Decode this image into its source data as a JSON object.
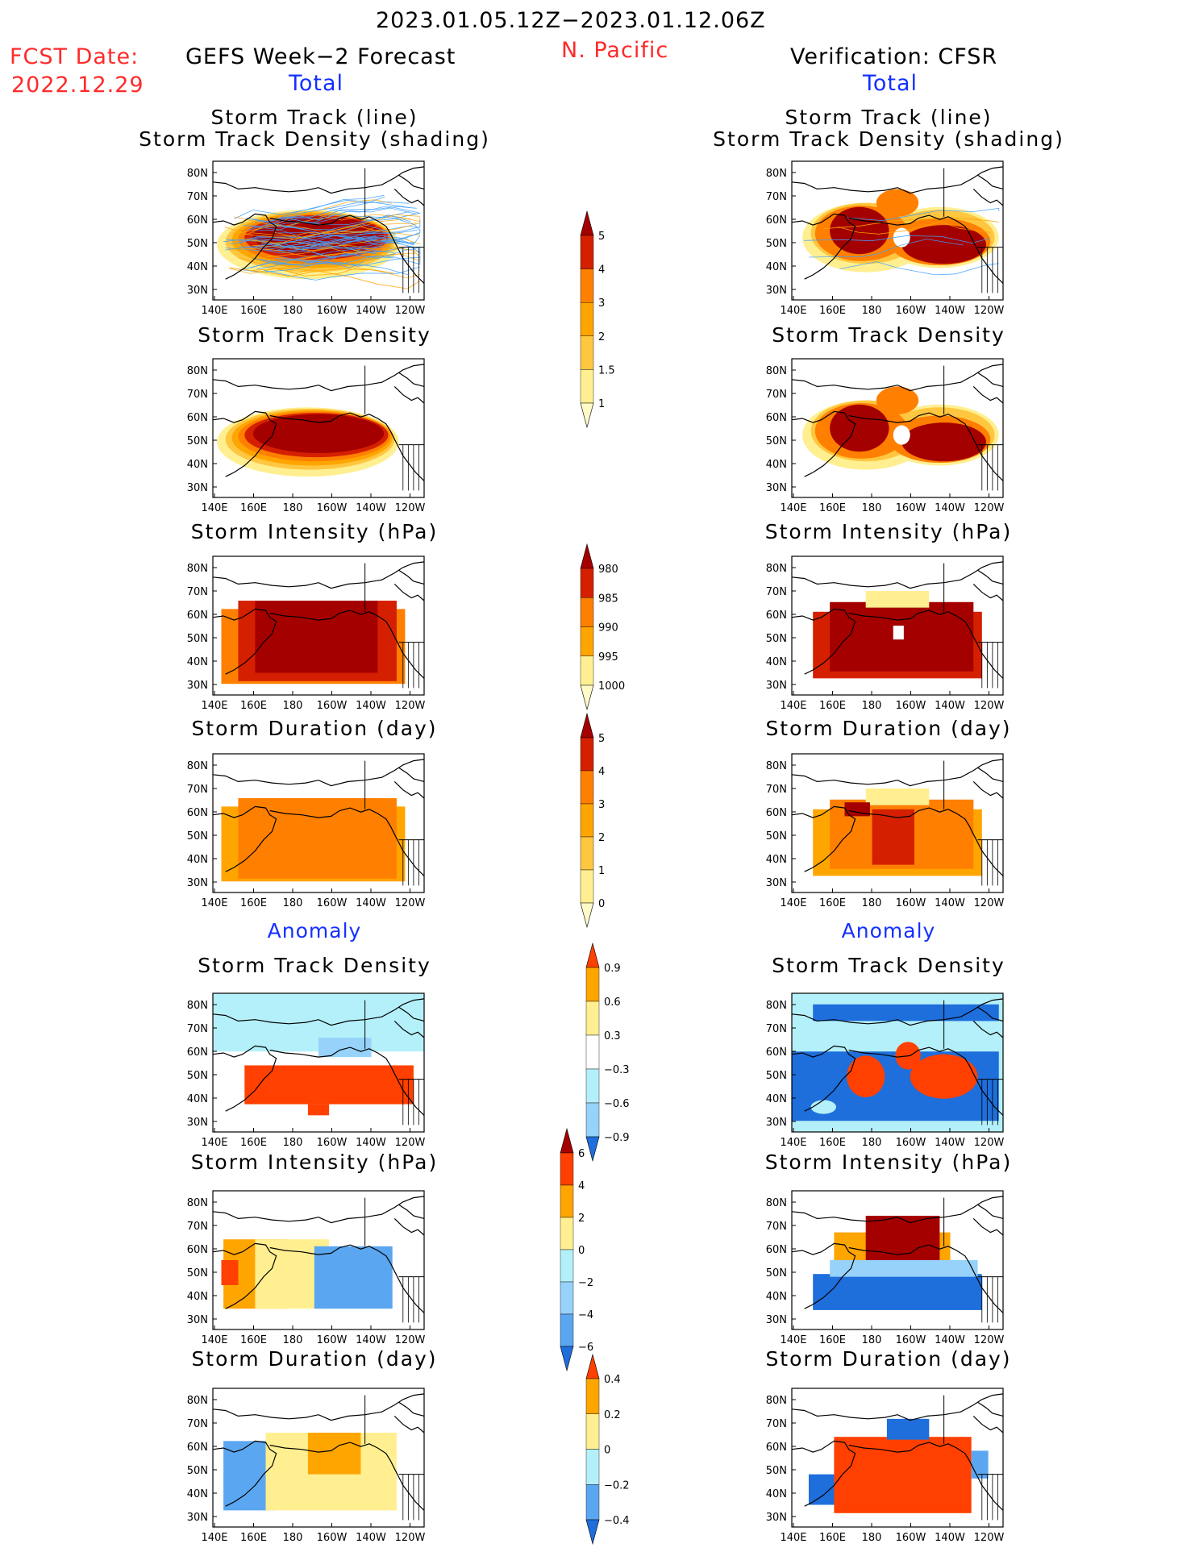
{
  "header": {
    "date_range": "2023.01.05.12Z−2023.01.12.06Z",
    "fcst_label": "FCST Date:",
    "fcst_date": "2022.12.29",
    "region": "N. Pacific",
    "left_title": "GEFS Week−2 Forecast",
    "right_title": "Verification: CFSR",
    "total_label": "Total",
    "anomaly_label": "Anomaly"
  },
  "colors": {
    "darkred": "#a50000",
    "red": "#d42000",
    "orangered": "#ff4000",
    "orange": "#ff7f00",
    "lightorange": "#ffa500",
    "amber": "#ffc640",
    "pale": "#ffef90",
    "paler": "#fffac8",
    "lightblue": "#b4f0fa",
    "midblue": "#96d2fa",
    "blue": "#5ba6f0",
    "deepblue": "#1e6edc",
    "track_blue": "#3fa0ff"
  },
  "map": {
    "lat_ticks": [
      "80N",
      "70N",
      "60N",
      "50N",
      "40N",
      "30N"
    ],
    "lon_ticks": [
      "140E",
      "160E",
      "180",
      "160W",
      "140W",
      "120W"
    ]
  },
  "panels": [
    {
      "id": "fc-track",
      "title_lines": [
        "Storm Track (line)",
        "Storm Track Density (shading)"
      ]
    },
    {
      "id": "fc-density",
      "title_lines": [
        "Storm Track Density"
      ]
    },
    {
      "id": "fc-intensity",
      "title_lines": [
        "Storm Intensity (hPa)"
      ]
    },
    {
      "id": "fc-duration",
      "title_lines": [
        "Storm Duration (day)"
      ]
    },
    {
      "id": "fc-anom-density",
      "title_lines": [
        "Storm Track Density"
      ]
    },
    {
      "id": "fc-anom-intensity",
      "title_lines": [
        "Storm Intensity (hPa)"
      ]
    },
    {
      "id": "fc-anom-duration",
      "title_lines": [
        "Storm Duration (day)"
      ]
    },
    {
      "id": "vf-track",
      "title_lines": [
        "Storm Track (line)",
        "Storm Track Density (shading)"
      ]
    },
    {
      "id": "vf-density",
      "title_lines": [
        "Storm Track Density"
      ]
    },
    {
      "id": "vf-intensity",
      "title_lines": [
        "Storm Intensity (hPa)"
      ]
    },
    {
      "id": "vf-duration",
      "title_lines": [
        "Storm Duration (day)"
      ]
    },
    {
      "id": "vf-anom-density",
      "title_lines": [
        "Storm Track Density"
      ]
    },
    {
      "id": "vf-anom-intensity",
      "title_lines": [
        "Storm Intensity (hPa)"
      ]
    },
    {
      "id": "vf-anom-duration",
      "title_lines": [
        "Storm Duration (day)"
      ]
    }
  ],
  "chart_data": [
    {
      "type": "heatmap",
      "name": "colorbar-total-density",
      "levels": [
        "1",
        "1.5",
        "2",
        "3",
        "4",
        "5"
      ],
      "colors": [
        "#fffac8",
        "#ffef90",
        "#ffc640",
        "#ffa500",
        "#ff7f00",
        "#d42000",
        "#a50000"
      ]
    },
    {
      "type": "heatmap",
      "name": "colorbar-total-intensity",
      "levels": [
        "1000",
        "995",
        "990",
        "985",
        "980"
      ],
      "colors": [
        "#fffac8",
        "#ffef90",
        "#ffa500",
        "#ff7f00",
        "#d42000",
        "#a50000"
      ]
    },
    {
      "type": "heatmap",
      "name": "colorbar-total-duration",
      "levels": [
        "0",
        "1",
        "2",
        "3",
        "4",
        "5"
      ],
      "colors": [
        "#fffac8",
        "#ffef90",
        "#ffc640",
        "#ffa500",
        "#ff7f00",
        "#d42000",
        "#a50000"
      ]
    },
    {
      "type": "heatmap",
      "name": "colorbar-anom-density",
      "levels": [
        "0.9",
        "0.6",
        "0.3",
        "−0.3",
        "−0.6",
        "−0.9"
      ],
      "colors": [
        "#ff4000",
        "#ffa500",
        "#ffef90",
        "#ffffff",
        "#b4f0fa",
        "#96d2fa",
        "#1e6edc"
      ]
    },
    {
      "type": "heatmap",
      "name": "colorbar-anom-intensity",
      "levels": [
        "6",
        "4",
        "2",
        "0",
        "−2",
        "−4",
        "−6"
      ],
      "colors": [
        "#a50000",
        "#ff4000",
        "#ffa500",
        "#ffef90",
        "#b4f0fa",
        "#96d2fa",
        "#5ba6f0",
        "#1e6edc"
      ]
    },
    {
      "type": "heatmap",
      "name": "colorbar-anom-duration",
      "levels": [
        "0.4",
        "0.2",
        "0",
        "−0.2",
        "−0.4"
      ],
      "colors": [
        "#ff4000",
        "#ffa500",
        "#ffef90",
        "#b4f0fa",
        "#5ba6f0",
        "#1e6edc"
      ]
    }
  ]
}
